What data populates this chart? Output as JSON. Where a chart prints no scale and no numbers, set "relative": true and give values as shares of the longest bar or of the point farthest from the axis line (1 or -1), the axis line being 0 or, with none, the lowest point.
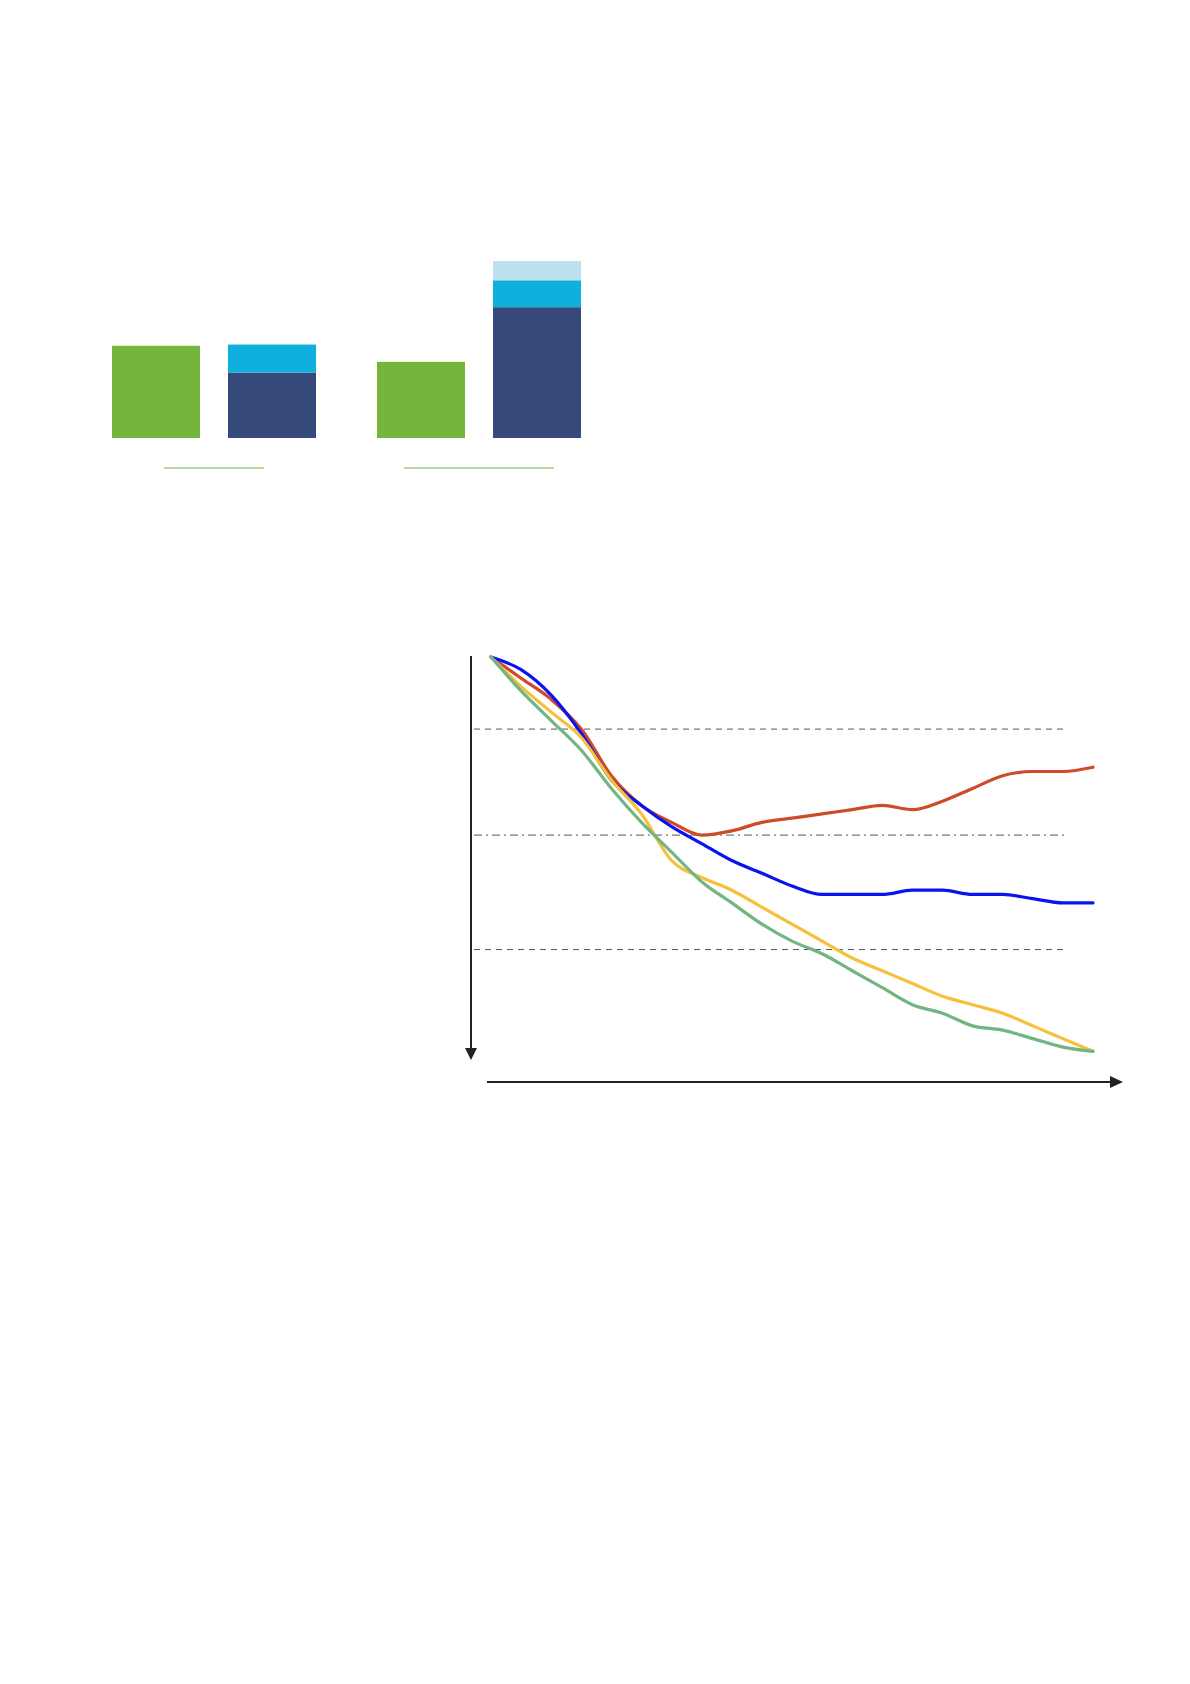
{
  "chart_data": [
    {
      "type": "bar",
      "stacked": true,
      "relative": true,
      "categories": [
        null,
        null,
        null,
        null
      ],
      "series": [
        {
          "color": "#76b53c",
          "values": [
            0.521,
            null,
            0.43,
            null
          ]
        },
        {
          "color": "#354a7a",
          "values": [
            null,
            0.37,
            null,
            0.739
          ]
        },
        {
          "color": "#0eb0de",
          "values": [
            null,
            0.158,
            null,
            0.152
          ]
        },
        {
          "color": "#bde0ef",
          "values": [
            null,
            null,
            null,
            0.109
          ]
        }
      ]
    },
    {
      "type": "line",
      "relative": true,
      "categories": [
        null,
        null,
        null,
        null,
        null,
        null,
        null,
        null,
        null,
        null,
        null,
        null,
        null,
        null,
        null,
        null,
        null,
        null,
        null,
        null,
        null
      ],
      "series": [
        {
          "color": "#d04a2a",
          "values": [
            1.0,
            0.95,
            0.9,
            0.83,
            0.72,
            0.65,
            0.61,
            0.58,
            0.59,
            0.61,
            0.62,
            0.63,
            0.64,
            0.65,
            0.64,
            0.66,
            0.69,
            0.72,
            0.73,
            0.73,
            0.74
          ]
        },
        {
          "color": "#0a14f0",
          "values": [
            1.0,
            0.97,
            0.91,
            0.82,
            0.71,
            0.65,
            0.6,
            0.56,
            0.52,
            0.49,
            0.46,
            0.44,
            0.44,
            0.44,
            0.45,
            0.45,
            0.44,
            0.44,
            0.43,
            0.42,
            0.42
          ]
        },
        {
          "color": "#f5c03a",
          "values": [
            1.0,
            0.93,
            0.87,
            0.81,
            0.71,
            0.63,
            0.52,
            0.48,
            0.45,
            0.41,
            0.37,
            0.33,
            0.29,
            0.26,
            0.23,
            0.2,
            0.18,
            0.16,
            0.13,
            0.1,
            0.07
          ]
        },
        {
          "color": "#72b582",
          "values": [
            1.0,
            0.92,
            0.85,
            0.78,
            0.69,
            0.61,
            0.54,
            0.47,
            0.42,
            0.37,
            0.33,
            0.3,
            0.26,
            0.22,
            0.18,
            0.16,
            0.13,
            0.12,
            0.1,
            0.08,
            0.07
          ]
        }
      ],
      "ref_lines": [
        {
          "axis": "y",
          "value": 0.83,
          "line_style": "dashed",
          "color": "#555555"
        },
        {
          "axis": "y",
          "value": 0.58,
          "line_style": "dotted",
          "color": "#555555"
        },
        {
          "axis": "y",
          "value": 0.31,
          "line_style": "dashed",
          "color": "#555555"
        }
      ]
    }
  ]
}
